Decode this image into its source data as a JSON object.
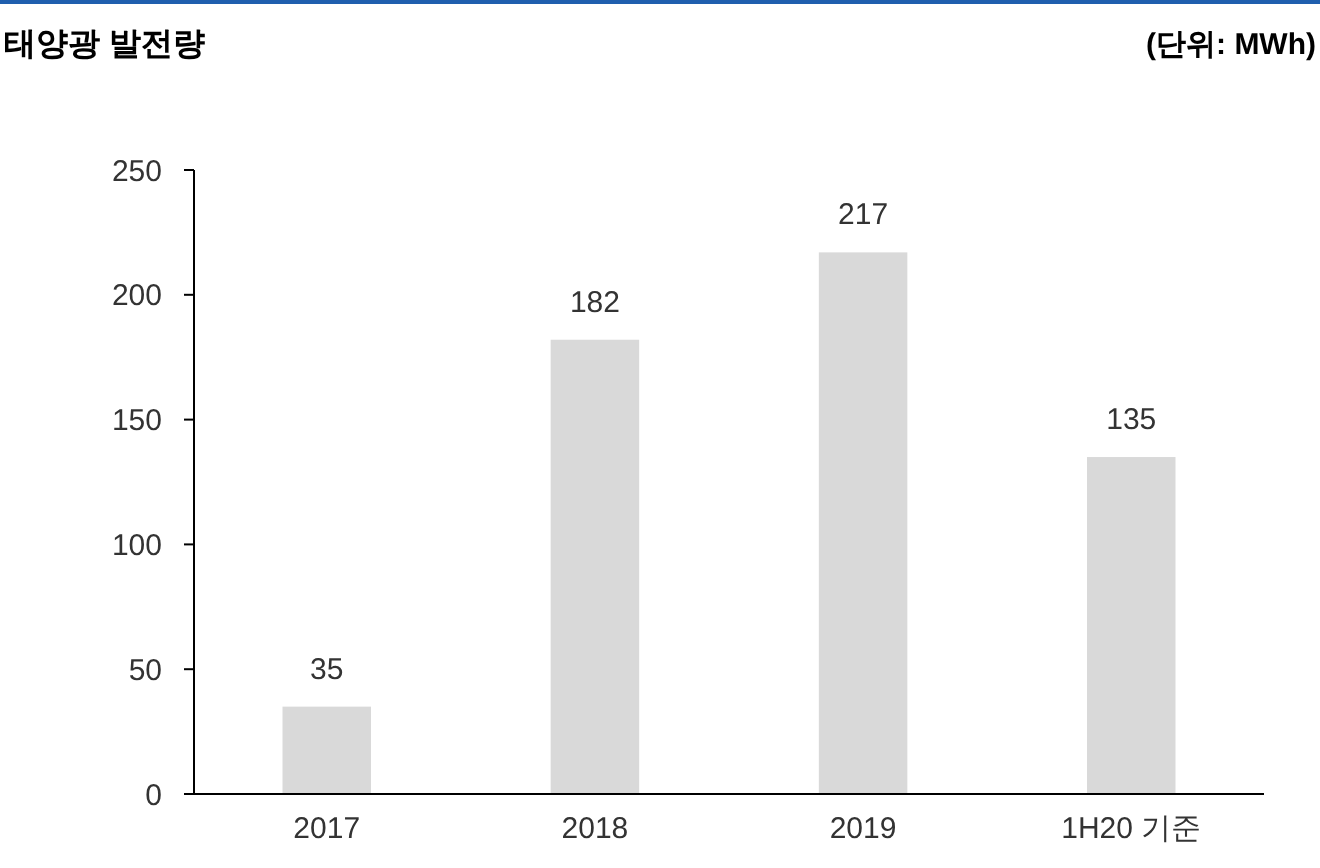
{
  "chart_data": {
    "type": "bar",
    "title": "태양광 발전량",
    "subtitle": "(단위: MWh)",
    "categories": [
      "2017",
      "2018",
      "2019",
      "1H20 기준"
    ],
    "values": [
      35,
      182,
      217,
      135
    ],
    "color": "#d9d9d9",
    "ylim": [
      0,
      250
    ],
    "yticks": [
      0,
      50,
      100,
      150,
      200,
      250
    ],
    "grid": false,
    "data_labels": true
  }
}
